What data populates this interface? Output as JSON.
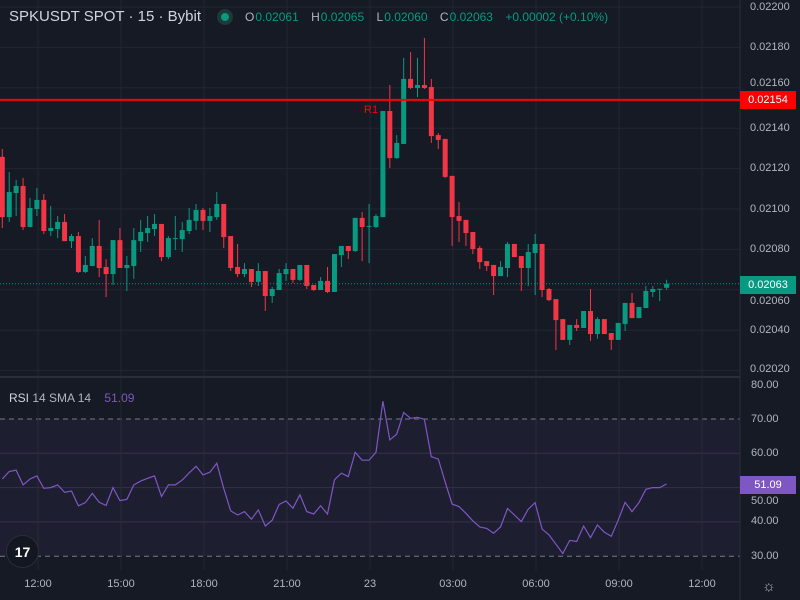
{
  "header": {
    "symbol": "SPKUSDT SPOT · 15 · Bybit",
    "status_dot_color": "#089981",
    "open_label": "O",
    "open": "0.02061",
    "high_label": "H",
    "high": "0.02065",
    "low_label": "L",
    "low": "0.02060",
    "close_label": "C",
    "close": "0.02063",
    "change": "+0.00002 (+0.10%)"
  },
  "colors": {
    "up": "#089981",
    "down": "#f23645",
    "resistance": "#ff0000",
    "rsi": "#7e57c2",
    "background": "#161a25"
  },
  "price_axis": {
    "ticks": [
      "0.02200",
      "0.02180",
      "0.02160",
      "0.02140",
      "0.02120",
      "0.02100",
      "0.02080",
      "0.02060",
      "0.02040",
      "0.02020"
    ],
    "range": [
      0.0202,
      0.022
    ],
    "resistance_price": "0.02154",
    "last_price": "0.02063"
  },
  "resistance": {
    "label": "R1",
    "price": 0.02154
  },
  "time_axis": {
    "ticks": [
      "12:00",
      "15:00",
      "18:00",
      "21:00",
      "23",
      "03:00",
      "06:00",
      "09:00",
      "12:00"
    ]
  },
  "rsi": {
    "name": "RSI",
    "params": "14 SMA 14",
    "value": "51.09",
    "ticks": [
      "80.00",
      "70.00",
      "60.00",
      "50.00",
      "40.00",
      "30.00"
    ],
    "bands": [
      70,
      30
    ],
    "values": [
      52.5,
      54.7,
      55.1,
      50.8,
      52.5,
      53.4,
      49.8,
      50.0,
      50.8,
      48.6,
      49.0,
      44.7,
      45.6,
      48.3,
      45.7,
      44.8,
      50.0,
      46.2,
      46.6,
      50.8,
      51.9,
      52.7,
      53.4,
      47.4,
      50.8,
      50.8,
      52.2,
      54.3,
      56.2,
      53.7,
      54.5,
      57.1,
      49.8,
      43.2,
      42.0,
      43.0,
      40.8,
      43.5,
      38.8,
      40.5,
      45.1,
      46.1,
      44.0,
      47.9,
      43.0,
      42.3,
      44.7,
      42.3,
      52.3,
      54.2,
      53.2,
      60.3,
      58.0,
      58.0,
      60.3,
      75.2,
      63.9,
      65.6,
      71.9,
      70.2,
      70.5,
      69.9,
      59.0,
      58.3,
      51.6,
      45.2,
      44.5,
      42.5,
      40.3,
      38.5,
      38.1,
      36.7,
      38.5,
      43.9,
      42.0,
      40.1,
      43.7,
      45.6,
      37.9,
      36.2,
      33.5,
      30.8,
      34.6,
      34.3,
      38.8,
      35.4,
      39.1,
      37.0,
      35.8,
      40.5,
      45.7,
      43.0,
      45.6,
      49.5,
      50.0,
      50.0,
      51.09
    ]
  },
  "chart_data": {
    "type": "candlestick",
    "interval": "15",
    "ohlc": [
      [
        0.021258,
        0.021297,
        0.020906,
        0.02096
      ],
      [
        0.02096,
        0.021183,
        0.020936,
        0.021084
      ],
      [
        0.021079,
        0.021144,
        0.020965,
        0.021114
      ],
      [
        0.021114,
        0.021154,
        0.020896,
        0.020911
      ],
      [
        0.020911,
        0.021055,
        0.020911,
        0.021005
      ],
      [
        0.021,
        0.021104,
        0.020965,
        0.021045
      ],
      [
        0.021045,
        0.021074,
        0.020876,
        0.020891
      ],
      [
        0.020891,
        0.021015,
        0.020866,
        0.020906
      ],
      [
        0.020901,
        0.020965,
        0.020856,
        0.020936
      ],
      [
        0.020936,
        0.020975,
        0.020841,
        0.020841
      ],
      [
        0.020841,
        0.020876,
        0.020807,
        0.020866
      ],
      [
        0.020866,
        0.020886,
        0.020683,
        0.020688
      ],
      [
        0.020688,
        0.020767,
        0.020683,
        0.020723
      ],
      [
        0.020718,
        0.020856,
        0.020718,
        0.020817
      ],
      [
        0.020817,
        0.020946,
        0.020663,
        0.020708
      ],
      [
        0.020713,
        0.020752,
        0.020564,
        0.020678
      ],
      [
        0.020678,
        0.020846,
        0.020624,
        0.020846
      ],
      [
        0.020846,
        0.020906,
        0.020708,
        0.020708
      ],
      [
        0.020708,
        0.020767,
        0.020594,
        0.020723
      ],
      [
        0.020718,
        0.020906,
        0.020654,
        0.020846
      ],
      [
        0.020841,
        0.020946,
        0.020787,
        0.020886
      ],
      [
        0.020881,
        0.020965,
        0.020837,
        0.020906
      ],
      [
        0.020901,
        0.020975,
        0.020866,
        0.020926
      ],
      [
        0.020926,
        0.020926,
        0.020742,
        0.020762
      ],
      [
        0.020762,
        0.020866,
        0.020752,
        0.020856
      ],
      [
        0.020851,
        0.020965,
        0.020797,
        0.020856
      ],
      [
        0.020851,
        0.020936,
        0.020787,
        0.020896
      ],
      [
        0.020891,
        0.021005,
        0.020876,
        0.020946
      ],
      [
        0.020941,
        0.021025,
        0.020896,
        0.020995
      ],
      [
        0.020995,
        0.021005,
        0.020896,
        0.020941
      ],
      [
        0.020941,
        0.021005,
        0.020886,
        0.020965
      ],
      [
        0.02096,
        0.021084,
        0.020946,
        0.021025
      ],
      [
        0.021025,
        0.021025,
        0.020807,
        0.020861
      ],
      [
        0.020866,
        0.020866,
        0.020693,
        0.020708
      ],
      [
        0.020713,
        0.020827,
        0.020663,
        0.020678
      ],
      [
        0.020678,
        0.020732,
        0.020663,
        0.020703
      ],
      [
        0.020703,
        0.020703,
        0.020614,
        0.020639
      ],
      [
        0.020639,
        0.020732,
        0.020619,
        0.020693
      ],
      [
        0.020693,
        0.020693,
        0.020495,
        0.020569
      ],
      [
        0.020569,
        0.020614,
        0.020535,
        0.020604
      ],
      [
        0.020599,
        0.020703,
        0.020599,
        0.020683
      ],
      [
        0.020678,
        0.020732,
        0.020644,
        0.020703
      ],
      [
        0.020703,
        0.020703,
        0.020634,
        0.020649
      ],
      [
        0.020649,
        0.020723,
        0.020644,
        0.020723
      ],
      [
        0.020723,
        0.020723,
        0.020604,
        0.020619
      ],
      [
        0.020624,
        0.020624,
        0.020594,
        0.020599
      ],
      [
        0.020599,
        0.020663,
        0.020599,
        0.020644
      ],
      [
        0.020644,
        0.020713,
        0.020584,
        0.020589
      ],
      [
        0.020589,
        0.020777,
        0.020589,
        0.020777
      ],
      [
        0.020772,
        0.020817,
        0.020713,
        0.020817
      ],
      [
        0.020817,
        0.020817,
        0.020752,
        0.020792
      ],
      [
        0.020792,
        0.020956,
        0.020787,
        0.020956
      ],
      [
        0.020956,
        0.020985,
        0.020742,
        0.020911
      ],
      [
        0.020911,
        0.021025,
        0.020732,
        0.020916
      ],
      [
        0.020911,
        0.020975,
        0.020906,
        0.020965
      ],
      [
        0.02096,
        0.021485,
        0.02096,
        0.021485
      ],
      [
        0.021485,
        0.021614,
        0.021203,
        0.021252
      ],
      [
        0.021252,
        0.021366,
        0.021248,
        0.021327
      ],
      [
        0.021322,
        0.021748,
        0.021322,
        0.021644
      ],
      [
        0.021644,
        0.021777,
        0.021594,
        0.021599
      ],
      [
        0.021599,
        0.021748,
        0.021554,
        0.021614
      ],
      [
        0.021614,
        0.021847,
        0.021594,
        0.021599
      ],
      [
        0.021604,
        0.021644,
        0.021327,
        0.021361
      ],
      [
        0.021366,
        0.021376,
        0.021297,
        0.021342
      ],
      [
        0.021347,
        0.021347,
        0.021154,
        0.021159
      ],
      [
        0.021164,
        0.021164,
        0.020817,
        0.02096
      ],
      [
        0.020965,
        0.021035,
        0.020837,
        0.020941
      ],
      [
        0.020946,
        0.020946,
        0.020817,
        0.020881
      ],
      [
        0.020886,
        0.020886,
        0.020777,
        0.020802
      ],
      [
        0.020807,
        0.020817,
        0.020703,
        0.020737
      ],
      [
        0.020742,
        0.020742,
        0.020693,
        0.020718
      ],
      [
        0.020723,
        0.020723,
        0.020574,
        0.020668
      ],
      [
        0.020668,
        0.020742,
        0.020668,
        0.020713
      ],
      [
        0.020708,
        0.020837,
        0.020663,
        0.020827
      ],
      [
        0.020827,
        0.020827,
        0.020762,
        0.020762
      ],
      [
        0.020767,
        0.020767,
        0.020594,
        0.020708
      ],
      [
        0.020708,
        0.020827,
        0.020619,
        0.020787
      ],
      [
        0.020782,
        0.020876,
        0.020574,
        0.020827
      ],
      [
        0.020827,
        0.020827,
        0.020564,
        0.020599
      ],
      [
        0.020604,
        0.020609,
        0.020544,
        0.020549
      ],
      [
        0.020554,
        0.020554,
        0.020302,
        0.02045
      ],
      [
        0.020455,
        0.020455,
        0.020352,
        0.020352
      ],
      [
        0.020352,
        0.020426,
        0.020327,
        0.020426
      ],
      [
        0.020426,
        0.020455,
        0.020396,
        0.020411
      ],
      [
        0.020411,
        0.020495,
        0.020411,
        0.020495
      ],
      [
        0.020495,
        0.020604,
        0.020347,
        0.020381
      ],
      [
        0.020381,
        0.020465,
        0.020357,
        0.020455
      ],
      [
        0.020455,
        0.020455,
        0.020381,
        0.020381
      ],
      [
        0.020386,
        0.020386,
        0.020302,
        0.020352
      ],
      [
        0.020352,
        0.020436,
        0.020352,
        0.020436
      ],
      [
        0.020431,
        0.020535,
        0.020396,
        0.020535
      ],
      [
        0.020535,
        0.020584,
        0.02046,
        0.02046
      ],
      [
        0.02046,
        0.020515,
        0.02046,
        0.020515
      ],
      [
        0.02051,
        0.020619,
        0.02051,
        0.020594
      ],
      [
        0.020589,
        0.020619,
        0.020564,
        0.020604
      ],
      [
        0.020604,
        0.020604,
        0.020544,
        0.020605
      ],
      [
        0.02061,
        0.02065,
        0.0206,
        0.02063
      ]
    ]
  }
}
